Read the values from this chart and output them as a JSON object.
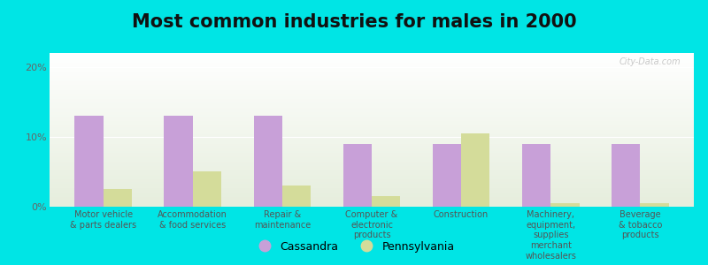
{
  "title": "Most common industries for males in 2000",
  "categories": [
    "Motor vehicle\n& parts dealers",
    "Accommodation\n& food services",
    "Repair &\nmaintenance",
    "Computer &\nelectronic\nproducts",
    "Construction",
    "Machinery,\nequipment,\nsupplies\nmerchant\nwholesalers",
    "Beverage\n& tobacco\nproducts"
  ],
  "cassandra_values": [
    13.0,
    13.0,
    13.0,
    9.0,
    9.0,
    9.0,
    9.0
  ],
  "pennsylvania_values": [
    2.5,
    5.0,
    3.0,
    1.5,
    10.5,
    0.5,
    0.5
  ],
  "cassandra_color": "#c8a0d8",
  "pennsylvania_color": "#d4dc9a",
  "background_color": "#00e5e5",
  "ylim": [
    0,
    22
  ],
  "yticks": [
    0,
    10,
    20
  ],
  "ytick_labels": [
    "0%",
    "10%",
    "20%"
  ],
  "bar_width": 0.32,
  "legend_cassandra": "Cassandra",
  "legend_pennsylvania": "Pennsylvania",
  "title_fontsize": 15,
  "watermark": "City-Data.com"
}
